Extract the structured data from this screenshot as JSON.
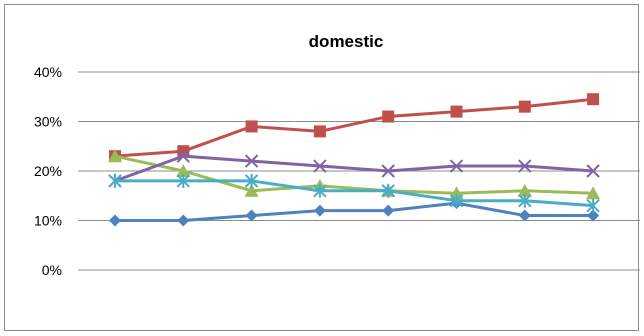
{
  "chart_data": {
    "type": "line",
    "title": "domestic",
    "xlabel": "",
    "ylabel": "",
    "x": [
      1,
      2,
      3,
      4,
      5,
      6,
      7,
      8
    ],
    "ylim": [
      0,
      40
    ],
    "yticks": [
      0,
      10,
      20,
      30,
      40
    ],
    "ytick_labels": [
      "0%",
      "10%",
      "20%",
      "30%",
      "40%"
    ],
    "grid": "horizontal",
    "legend": "none",
    "series": [
      {
        "color": "#4f81bd",
        "marker": "diamond",
        "values": [
          10,
          10,
          11,
          12,
          12,
          13.5,
          11,
          11
        ]
      },
      {
        "color": "#c0504d",
        "marker": "square",
        "values": [
          23,
          24,
          29,
          28,
          31,
          32,
          33,
          34.5
        ]
      },
      {
        "color": "#9bbb59",
        "marker": "triangle",
        "values": [
          23,
          20,
          16,
          17,
          16,
          15.5,
          16,
          15.5
        ]
      },
      {
        "color": "#8064a2",
        "marker": "x",
        "values": [
          18,
          23,
          22,
          21,
          20,
          21,
          21,
          20
        ]
      },
      {
        "color": "#4bacc6",
        "marker": "star",
        "values": [
          18,
          18,
          18,
          16,
          16,
          14,
          14,
          13
        ]
      }
    ]
  }
}
